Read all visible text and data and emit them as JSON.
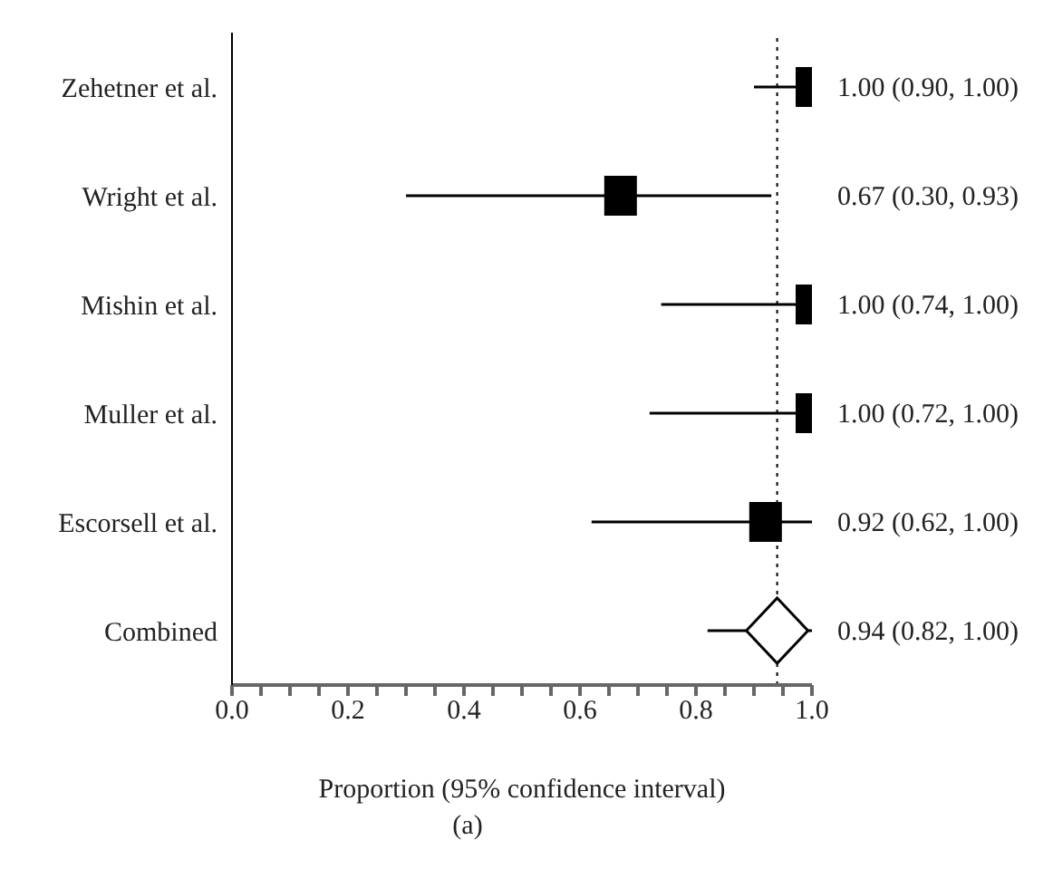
{
  "chart_data": {
    "type": "scatter",
    "orientation": "horizontal",
    "categories": [
      "Zehetner et al.",
      "Wright et al.",
      "Mishin et al.",
      "Muller et al.",
      "Escorsell et al.",
      "Combined"
    ],
    "series": [
      {
        "type": "scatter",
        "marker": "square",
        "color": "#000000",
        "values": [
          1.0,
          0.67,
          1.0,
          1.0,
          0.92,
          null
        ],
        "errors": [
          [
            0.9,
            1.0
          ],
          [
            0.3,
            0.93
          ],
          [
            0.74,
            1.0
          ],
          [
            0.72,
            1.0
          ],
          [
            0.62,
            1.0
          ],
          null
        ],
        "value_labels": [
          "1.00 (0.90, 1.00)",
          "0.67 (0.30, 0.93)",
          "1.00 (0.74, 1.00)",
          "1.00 (0.72, 1.00)",
          "0.92 (0.62, 1.00)",
          null
        ]
      },
      {
        "type": "scatter",
        "marker": "diamond",
        "color": "#000000",
        "values": [
          null,
          null,
          null,
          null,
          null,
          0.94
        ],
        "errors": [
          null,
          null,
          null,
          null,
          null,
          [
            0.82,
            1.0
          ]
        ],
        "value_labels": [
          null,
          null,
          null,
          null,
          null,
          "0.94 (0.82, 1.00)"
        ]
      }
    ],
    "xlim": [
      0,
      1
    ],
    "xticks": [
      {
        "value": 0,
        "label": "0.0"
      },
      {
        "value": 0.05,
        "label": null
      },
      {
        "value": 0.1,
        "label": null
      },
      {
        "value": 0.15,
        "label": null
      },
      {
        "value": 0.2,
        "label": "0.2"
      },
      {
        "value": 0.25,
        "label": null
      },
      {
        "value": 0.3,
        "label": null
      },
      {
        "value": 0.35,
        "label": null
      },
      {
        "value": 0.4,
        "label": "0.4"
      },
      {
        "value": 0.45,
        "label": null
      },
      {
        "value": 0.5,
        "label": null
      },
      {
        "value": 0.55,
        "label": null
      },
      {
        "value": 0.6,
        "label": "0.6"
      },
      {
        "value": 0.65,
        "label": null
      },
      {
        "value": 0.7,
        "label": null
      },
      {
        "value": 0.75,
        "label": null
      },
      {
        "value": 0.8,
        "label": "0.8"
      },
      {
        "value": 0.85,
        "label": null
      },
      {
        "value": 0.9,
        "label": null
      },
      {
        "value": 0.95,
        "label": null
      },
      {
        "value": 1.0,
        "label": "1.0"
      }
    ],
    "xlabel": "Proportion (95% confidence interval)",
    "ref_lines": [
      {
        "axis": "x",
        "value": 0.94,
        "color": "#000000",
        "line_style": "dotted"
      }
    ],
    "grid": false,
    "legend": false,
    "annotations": [
      "(a)"
    ]
  }
}
